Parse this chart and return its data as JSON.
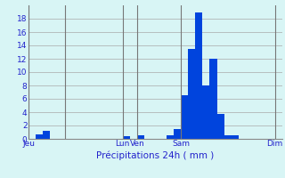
{
  "title": "Précipitations 24h ( mm )",
  "bar_color": "#0044dd",
  "background_color": "#d8f5f5",
  "grid_color": "#aaaaaa",
  "text_color": "#2222cc",
  "ylim": [
    0,
    20
  ],
  "yticks": [
    0,
    2,
    4,
    6,
    8,
    10,
    12,
    14,
    16,
    18
  ],
  "num_bars": 35,
  "values": [
    0.0,
    0.7,
    1.2,
    0.0,
    0.0,
    0.0,
    0.0,
    0.0,
    0.0,
    0.0,
    0.0,
    0.0,
    0.0,
    0.4,
    0.0,
    0.5,
    0.0,
    0.0,
    0.0,
    0.5,
    1.5,
    6.5,
    13.5,
    19.0,
    8.0,
    12.0,
    3.8,
    0.6,
    0.5,
    0.0,
    0.0,
    0.0,
    0.0,
    0.0,
    0.0
  ],
  "xtick_positions": [
    0,
    5,
    13,
    15,
    21,
    34
  ],
  "xtick_labels": [
    "Jeu",
    "",
    "Lun",
    "Ven",
    "Sam",
    "Dim"
  ],
  "day_lines": [
    0,
    5,
    13,
    15,
    21,
    34
  ],
  "xlabel": "Précipitations 24h ( mm )"
}
